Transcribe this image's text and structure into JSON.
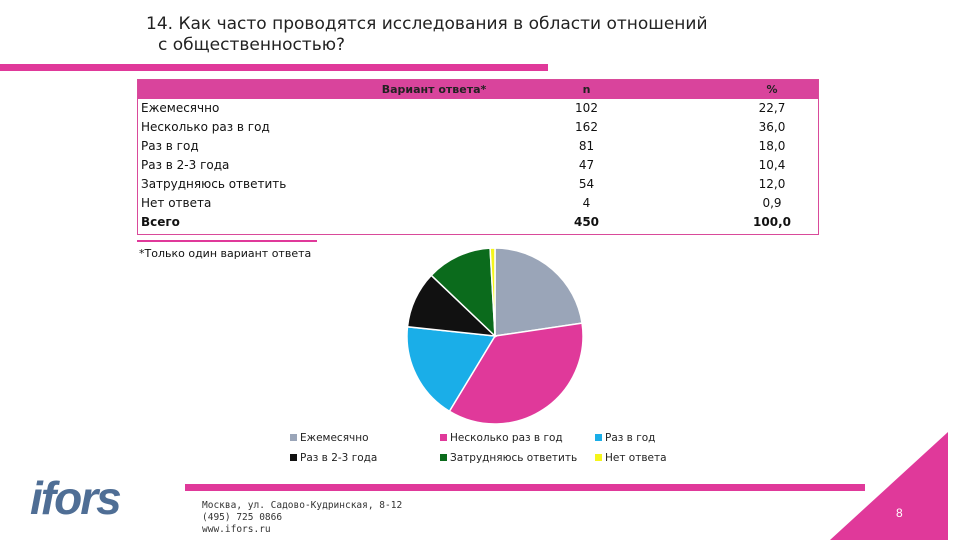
{
  "title": {
    "line1": "14. Как часто проводятся исследования в области отношений",
    "line2": "с общественностью?"
  },
  "table": {
    "headers": {
      "variant": "Вариант ответа*",
      "n": "n",
      "pct": "%"
    },
    "rows": [
      {
        "label": "Ежемесячно",
        "n": "102",
        "pct": "22,7"
      },
      {
        "label": "Несколько раз в год",
        "n": "162",
        "pct": "36,0"
      },
      {
        "label": "Раз в год",
        "n": "81",
        "pct": "18,0"
      },
      {
        "label": "Раз в 2-3 года",
        "n": "47",
        "pct": "10,4"
      },
      {
        "label": "Затрудняюсь ответить",
        "n": "54",
        "pct": "12,0"
      },
      {
        "label": "Нет ответа",
        "n": "4",
        "pct": "0,9"
      }
    ],
    "total": {
      "label": "Всего",
      "n": "450",
      "pct": "100,0"
    }
  },
  "note": "*Только один вариант ответа",
  "chart_data": {
    "type": "pie",
    "categories": [
      "Ежемесячно",
      "Несколько раз в год",
      "Раз в год",
      "Раз в 2-3 года",
      "Затрудняюсь ответить",
      "Нет ответа"
    ],
    "values": [
      102,
      162,
      81,
      47,
      54,
      4
    ],
    "colors": [
      "#9aa5b8",
      "#e0399a",
      "#1aaee8",
      "#111111",
      "#0b6b1c",
      "#f5f51a"
    ],
    "legend_labels": [
      "Ежемесячно",
      "Несколько раз в год",
      "Раз в год",
      "Раз в 2-3 года",
      "Затрудняюсь ответить",
      "Нет ответа"
    ],
    "legend_placement": "bottom",
    "start_angle_deg": 0,
    "direction": "clockwise"
  },
  "footer": {
    "logo_text": "ifors",
    "address_line1": "Москва, ул. Садово-Кудринская, 8-12",
    "address_line2": "(495) 725 0866",
    "address_line3": "www.ifors.ru",
    "page_number": "8"
  },
  "colors": {
    "accent": "#e0399a",
    "header_fill": "#d9449c",
    "logo_blue": "#4f6e95"
  }
}
